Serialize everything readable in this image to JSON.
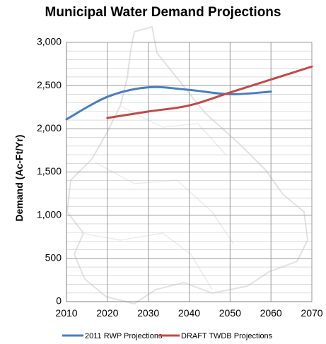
{
  "chart_data": {
    "type": "line",
    "title": "Municipal Water Demand Projections",
    "xlabel": "",
    "ylabel": "Demand (Ac-Ft/Yr)",
    "xlim": [
      2010,
      2070
    ],
    "ylim": [
      0,
      3000
    ],
    "x_ticks": [
      "2010",
      "2020",
      "2030",
      "2040",
      "2050",
      "2060",
      "2070"
    ],
    "y_ticks": [
      "0",
      "500",
      "1,000",
      "1,500",
      "2,000",
      "2,500",
      "3,000"
    ],
    "grid": true,
    "legend_position": "bottom",
    "series": [
      {
        "name": "2011 RWP Projections",
        "color": "#4a7ebb",
        "x": [
          2010,
          2020,
          2030,
          2040,
          2050,
          2060
        ],
        "y": [
          2110,
          2370,
          2480,
          2450,
          2400,
          2430
        ]
      },
      {
        "name": "DRAFT TWDB Projections",
        "color": "#be4b48",
        "x": [
          2020,
          2030,
          2040,
          2050,
          2060,
          2070
        ],
        "y": [
          2125,
          2200,
          2270,
          2420,
          2570,
          2720
        ]
      }
    ]
  }
}
